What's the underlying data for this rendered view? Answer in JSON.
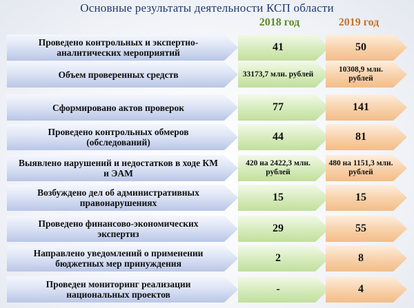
{
  "title": "Основные результаты деятельности КСП области",
  "columns": {
    "year1": "2018 год",
    "year2": "2019 год"
  },
  "rows": [
    {
      "label": "Проведено контрольных и экспертно-аналитических мероприятий",
      "v2018": "41",
      "v2019": "50",
      "small": false
    },
    {
      "label": "Объем проверенных средств",
      "v2018": "33173,7 млн. рублей",
      "v2019": "10308,9 млн. рублей",
      "small": true
    },
    {
      "label": "Сформировано актов проверок",
      "v2018": "77",
      "v2019": "141",
      "small": false
    },
    {
      "label": "Проведено контрольных обмеров (обследований)",
      "v2018": "44",
      "v2019": "81",
      "small": false
    },
    {
      "label": "Выявлено нарушений и недостатков в ходе КМ и ЭАМ",
      "v2018": "420 на 2422,3 млн. рублей",
      "v2019": "480 на 1151,3 млн. рублей",
      "small": true
    },
    {
      "label": "Возбуждено дел об административных правонарушениях",
      "v2018": "15",
      "v2019": "15",
      "small": false
    },
    {
      "label": "Проведено финансово-экономических экспертиз",
      "v2018": "29",
      "v2019": "55",
      "small": false
    },
    {
      "label": "Направлено уведомлений о применении бюджетных мер принуждения",
      "v2018": "2",
      "v2019": "8",
      "small": false
    },
    {
      "label": "Проведен мониторинг реализации национальных проектов",
      "v2018": "-",
      "v2019": "4",
      "small": false
    }
  ]
}
